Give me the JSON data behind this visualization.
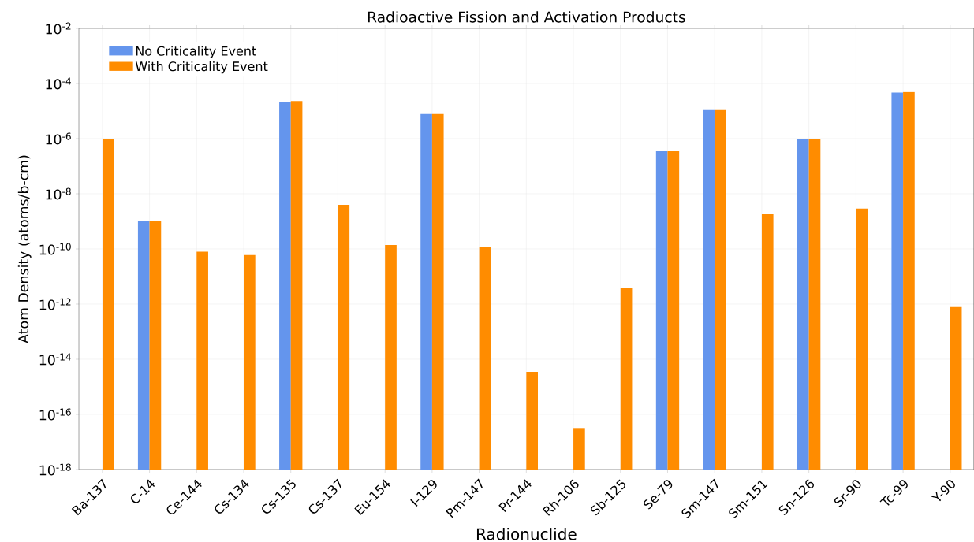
{
  "chart_data": {
    "type": "bar",
    "title": "Radioactive Fission and Activation Products",
    "xlabel": "Radionuclide",
    "ylabel": "Atom Density (atoms/b-cm)",
    "categories": [
      "Ba-137",
      "C-14",
      "Ce-144",
      "Cs-134",
      "Cs-135",
      "Cs-137",
      "Eu-154",
      "I-129",
      "Pm-147",
      "Pr-144",
      "Rh-106",
      "Sb-125",
      "Se-79",
      "Sm-147",
      "Sm-151",
      "Sn-126",
      "Sr-90",
      "Tc-99",
      "Y-90"
    ],
    "series": [
      {
        "name": "No Criticality Event",
        "color": "#6495ed",
        "values": [
          null,
          1e-09,
          null,
          null,
          2.2e-05,
          null,
          null,
          7.8e-06,
          null,
          null,
          null,
          null,
          3.5e-07,
          1.15e-05,
          null,
          1e-06,
          null,
          4.7e-05,
          null
        ]
      },
      {
        "name": "With Criticality Event",
        "color": "#ff8c00",
        "values": [
          9.3e-07,
          1e-09,
          8e-11,
          6e-11,
          2.3e-05,
          4e-09,
          1.4e-10,
          7.8e-06,
          1.2e-10,
          3.5e-15,
          3.2e-17,
          3.7e-12,
          3.5e-07,
          1.15e-05,
          1.8e-09,
          1e-06,
          2.9e-09,
          4.9e-05,
          7.8e-13
        ]
      }
    ],
    "log": "y",
    "ylim": [
      1e-18,
      0.01
    ],
    "yticks": [
      {
        "value": 1e-18,
        "label": "10$^{-18}$"
      },
      {
        "value": 1e-16,
        "label": "10$^{-16}$"
      },
      {
        "value": 1e-14,
        "label": "10$^{-14}$"
      },
      {
        "value": 1e-12,
        "label": "10$^{-12}$"
      },
      {
        "value": 1e-10,
        "label": "10$^{-10}$"
      },
      {
        "value": 1e-08,
        "label": "10$^{-8}$"
      },
      {
        "value": 1e-06,
        "label": "10$^{-6}$"
      },
      {
        "value": 0.0001,
        "label": "10$^{-4}$"
      },
      {
        "value": 0.01,
        "label": "10$^{-2}$"
      }
    ],
    "grid": true,
    "legend": "top left"
  }
}
